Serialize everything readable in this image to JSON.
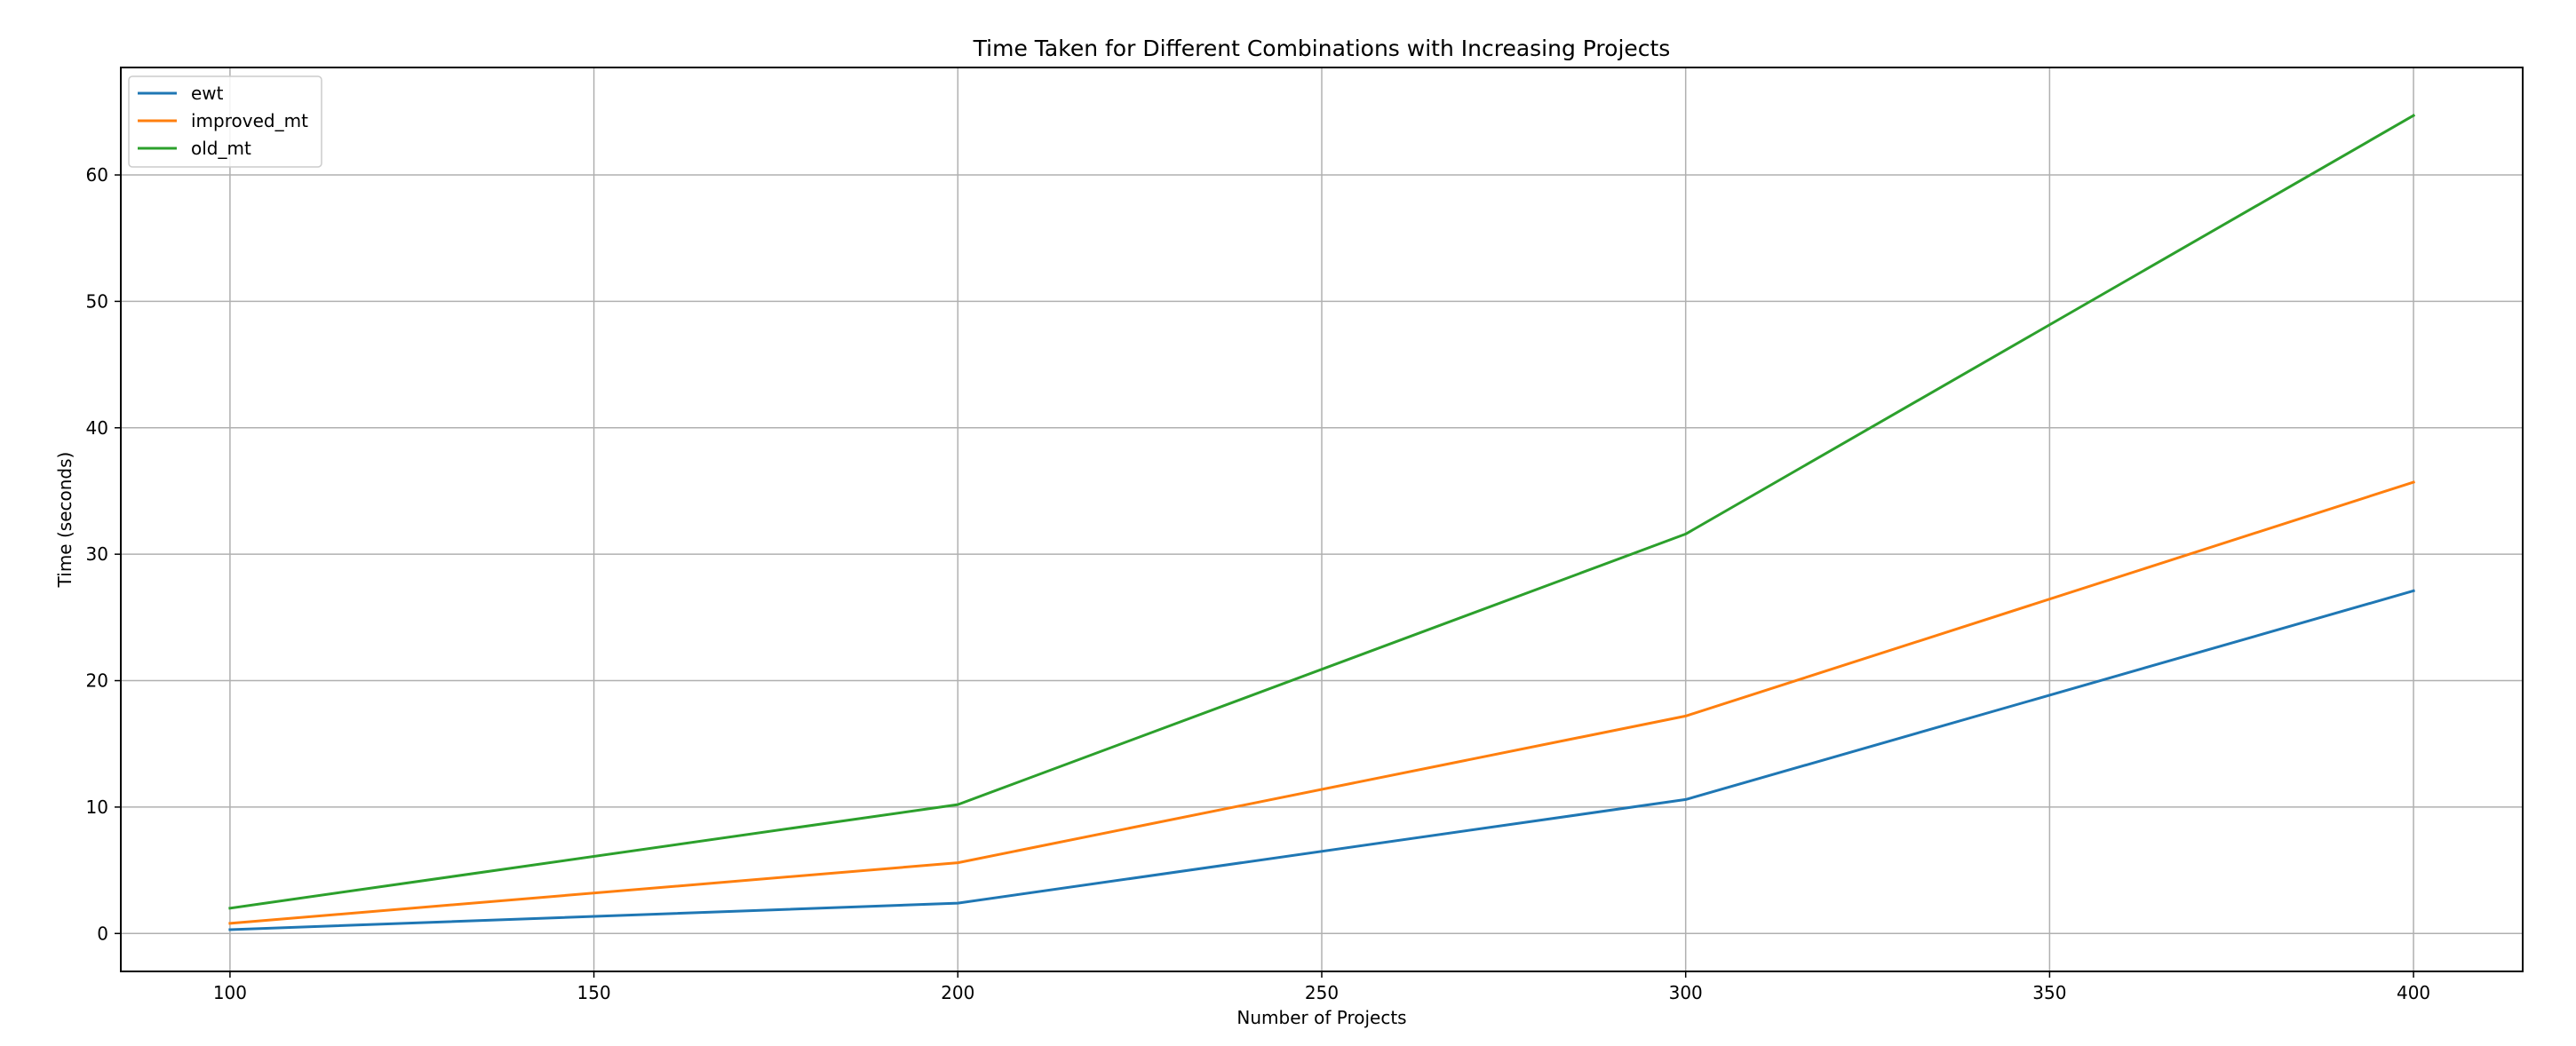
{
  "chart_data": {
    "type": "line",
    "title": "Time Taken for Different Combinations with Increasing Projects",
    "xlabel": "Number of Projects",
    "ylabel": "Time (seconds)",
    "x": [
      100,
      200,
      300,
      400
    ],
    "xlim": [
      85,
      415
    ],
    "ylim": [
      -3,
      68.5
    ],
    "xticks": [
      100,
      150,
      200,
      250,
      300,
      350,
      400
    ],
    "yticks": [
      0,
      10,
      20,
      30,
      40,
      50,
      60
    ],
    "grid": true,
    "legend_position": "upper-left",
    "series": [
      {
        "name": "ewt",
        "color": "#1f77b4",
        "values": [
          0.3,
          2.4,
          10.6,
          27.1
        ]
      },
      {
        "name": "improved_mt",
        "color": "#ff7f0e",
        "values": [
          0.8,
          5.6,
          17.2,
          35.7
        ]
      },
      {
        "name": "old_mt",
        "color": "#2ca02c",
        "values": [
          2.0,
          10.2,
          31.6,
          64.7
        ]
      }
    ]
  }
}
